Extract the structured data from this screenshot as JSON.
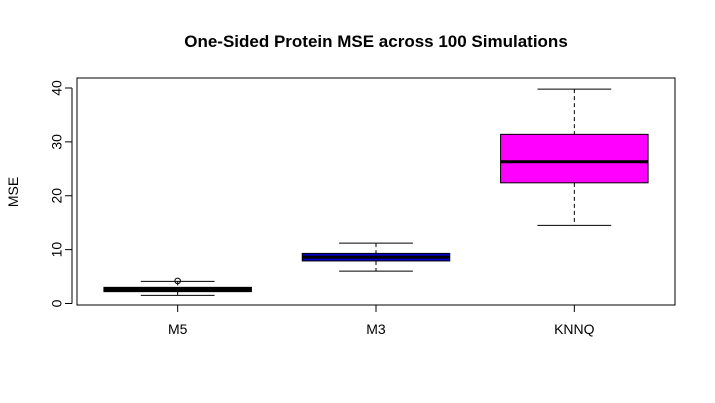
{
  "chart_data": {
    "type": "box",
    "title": "One-Sided Protein MSE across 100 Simulations",
    "xlabel": "",
    "ylabel": "MSE",
    "ylim": [
      0,
      41
    ],
    "yticks": [
      0,
      10,
      20,
      30,
      40
    ],
    "grid": false,
    "legend": "none",
    "categories": [
      "M5",
      "M3",
      "KNNQ"
    ],
    "boxes": [
      {
        "name": "M5",
        "whisker_low": 1.5,
        "q1": 2.2,
        "median": 2.6,
        "q3": 3.0,
        "whisker_high": 4.1,
        "outliers": [
          4.2
        ],
        "color": "#000000"
      },
      {
        "name": "M3",
        "whisker_low": 6.0,
        "q1": 7.9,
        "median": 8.6,
        "q3": 9.3,
        "whisker_high": 11.2,
        "outliers": [],
        "color": "#0000CD"
      },
      {
        "name": "KNNQ",
        "whisker_low": 14.5,
        "q1": 22.4,
        "median": 26.3,
        "q3": 31.4,
        "whisker_high": 39.8,
        "outliers": [],
        "color": "#FF00FF"
      }
    ]
  }
}
